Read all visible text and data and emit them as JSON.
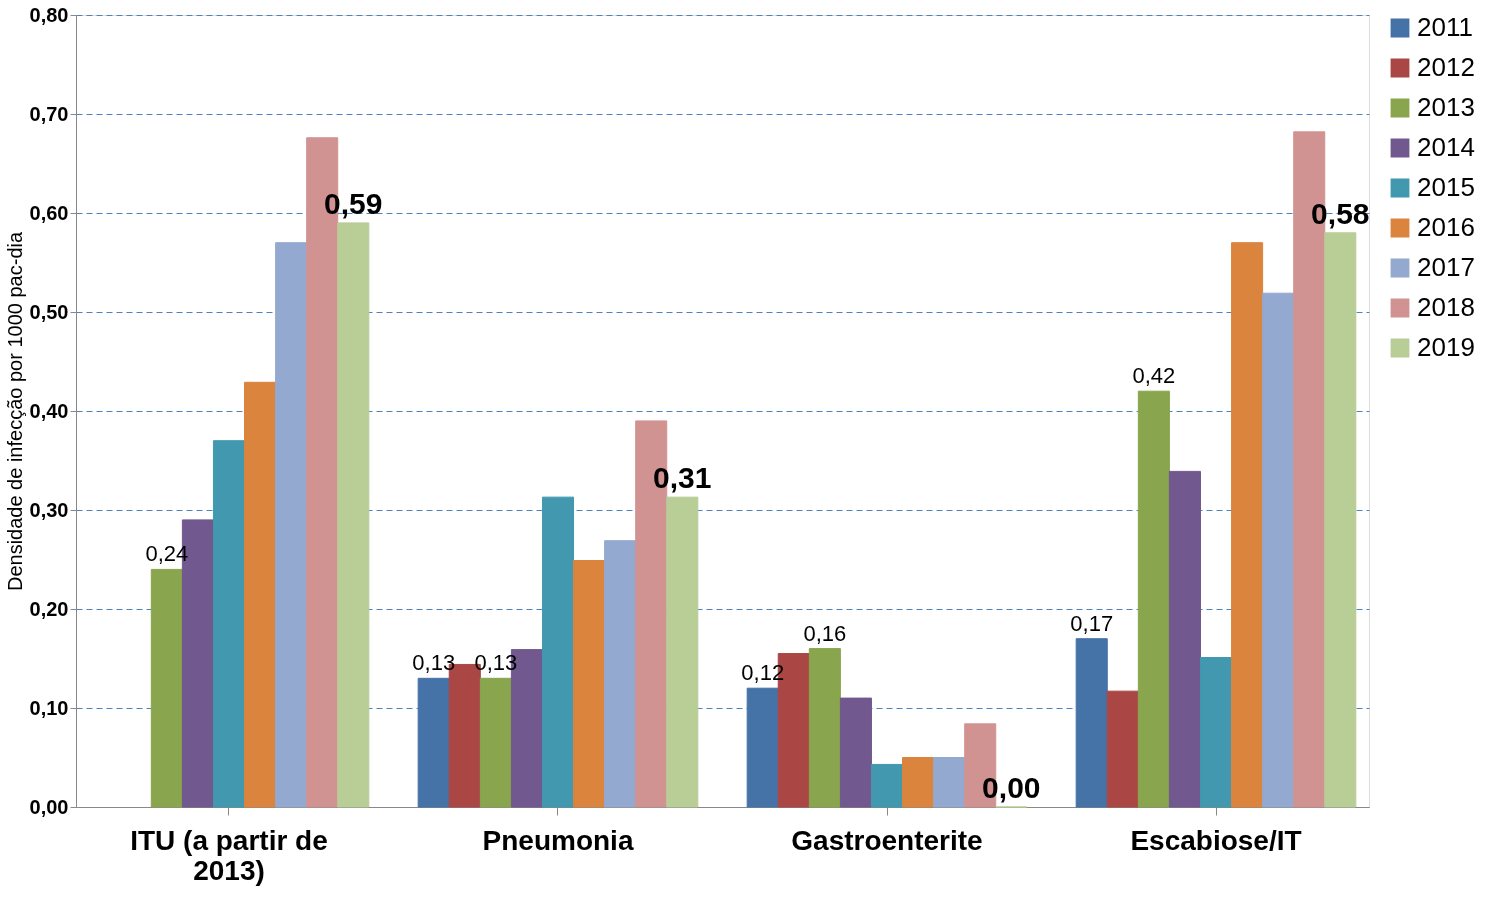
{
  "chart_data": {
    "type": "bar",
    "ylabel": "Densidade de infecção por 1000 pac-dia",
    "categories": [
      "ITU (a partir de 2013)",
      "Pneumonia",
      "Gastroenterite",
      "Escabiose/IT"
    ],
    "series": [
      {
        "name": "2011",
        "color": "#4572a7",
        "values": [
          null,
          0.13,
          0.12,
          0.17
        ],
        "value_labels": [
          null,
          "0,13",
          "0,12",
          "0,17"
        ]
      },
      {
        "name": "2012",
        "color": "#aa4643",
        "values": [
          null,
          0.144,
          0.155,
          0.117
        ]
      },
      {
        "name": "2013",
        "color": "#89a54e",
        "values": [
          0.24,
          0.13,
          0.16,
          0.42
        ],
        "value_labels": [
          "0,24",
          "0,13",
          "0,16",
          "0,42"
        ]
      },
      {
        "name": "2014",
        "color": "#71588f",
        "values": [
          0.29,
          0.159,
          0.11,
          0.339
        ]
      },
      {
        "name": "2015",
        "color": "#4198af",
        "values": [
          0.37,
          0.313,
          0.043,
          0.151
        ]
      },
      {
        "name": "2016",
        "color": "#db843d",
        "values": [
          0.429,
          0.249,
          0.05,
          0.57
        ]
      },
      {
        "name": "2017",
        "color": "#93a9cf",
        "values": [
          0.57,
          0.269,
          0.05,
          0.519
        ]
      },
      {
        "name": "2018",
        "color": "#d19392",
        "values": [
          0.676,
          0.39,
          0.084,
          0.682
        ]
      },
      {
        "name": "2019",
        "color": "#b9cd96",
        "values": [
          0.59,
          0.313,
          0.0,
          0.58
        ],
        "value_labels": [
          "0,59",
          "0,31",
          "0,00",
          "0,58"
        ]
      }
    ],
    "ylim": [
      0,
      0.8
    ],
    "yticks": [
      {
        "value": 0,
        "label": "0,00"
      },
      {
        "value": 0.1,
        "label": "0,10"
      },
      {
        "value": 0.2,
        "label": "0,20"
      },
      {
        "value": 0.3,
        "label": "0,30"
      },
      {
        "value": 0.4,
        "label": "0,40"
      },
      {
        "value": 0.5,
        "label": "0,50"
      },
      {
        "value": 0.6,
        "label": "0,60"
      },
      {
        "value": 0.7,
        "label": "0,70"
      },
      {
        "value": 0.8,
        "label": "0,80"
      }
    ],
    "grid": "y",
    "legend": "right"
  }
}
